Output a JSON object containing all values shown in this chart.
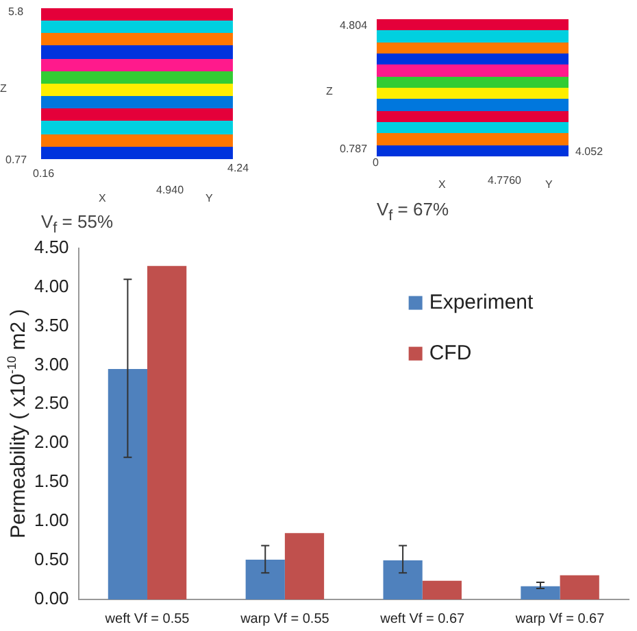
{
  "chart_data": {
    "type": "bar",
    "ylabel": "Permeability ( x10$^{-10}$ m2 )",
    "categories": [
      "weft Vf = 0.55",
      "warp Vf = 0.55",
      "weft Vf = 0.67",
      "warp Vf = 0.67"
    ],
    "series": [
      {
        "name": "Experiment",
        "color": "#4f81bd",
        "values": [
          2.95,
          0.51,
          0.5,
          0.17
        ],
        "errors": [
          [
            1.82,
            4.1
          ],
          [
            0.34,
            0.69
          ],
          [
            0.34,
            0.69
          ],
          [
            0.14,
            0.22
          ]
        ]
      },
      {
        "name": "CFD",
        "color": "#c0504d",
        "values": [
          4.27,
          0.85,
          0.24,
          0.31
        ]
      }
    ],
    "ylim": [
      0,
      4.5
    ],
    "yticks": [
      {
        "value": 0,
        "label": "0.00"
      },
      {
        "value": 0.5,
        "label": "0.50"
      },
      {
        "value": 1,
        "label": "1.00"
      },
      {
        "value": 1.5,
        "label": "1.50"
      },
      {
        "value": 2,
        "label": "2.00"
      },
      {
        "value": 2.5,
        "label": "2.50"
      },
      {
        "value": 3,
        "label": "3.00"
      },
      {
        "value": 3.5,
        "label": "3.50"
      },
      {
        "value": 4,
        "label": "4.00"
      },
      {
        "value": 4.5,
        "label": "4.50"
      }
    ],
    "grid": false,
    "legend": "top right",
    "annotations": [
      "5.8",
      "0.77",
      "0.16",
      "4.940",
      "4.24",
      "X",
      "Y",
      "Z",
      "V$_{f}$ = 55%",
      "4.804",
      "0.787",
      "0",
      "4.7760",
      "4.052",
      "X",
      "Y",
      "Z",
      "V$_{f}$ = 67%"
    ]
  }
}
